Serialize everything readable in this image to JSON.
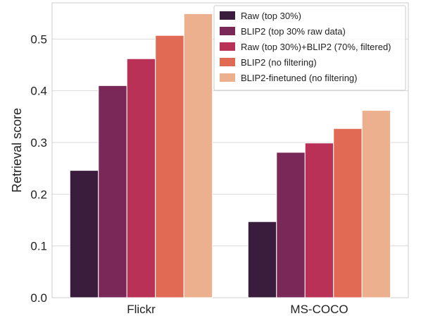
{
  "chart_data": {
    "type": "bar",
    "categories": [
      "Flickr",
      "MS-COCO"
    ],
    "series": [
      {
        "name": "Raw (top 30%)",
        "values": [
          0.246,
          0.147
        ],
        "color": "#3a1d3c"
      },
      {
        "name": "BLIP2 (top 30% raw data)",
        "values": [
          0.41,
          0.281
        ],
        "color": "#7a2857"
      },
      {
        "name": "Raw (top 30%)+BLIP2 (70%, filtered)",
        "values": [
          0.462,
          0.299
        ],
        "color": "#b93157"
      },
      {
        "name": "BLIP2 (no filtering)",
        "values": [
          0.507,
          0.327
        ],
        "color": "#e16a54"
      },
      {
        "name": "BLIP2-finetuned (no filtering)",
        "values": [
          0.549,
          0.362
        ],
        "color": "#ecb08f"
      }
    ],
    "title": "",
    "xlabel": "",
    "ylabel": "Retrieval score",
    "ylim": [
      0,
      0.57
    ],
    "yticks": [
      "0.0",
      "0.1",
      "0.2",
      "0.3",
      "0.4",
      "0.5"
    ],
    "grid": true,
    "legend_position": "top-right"
  }
}
